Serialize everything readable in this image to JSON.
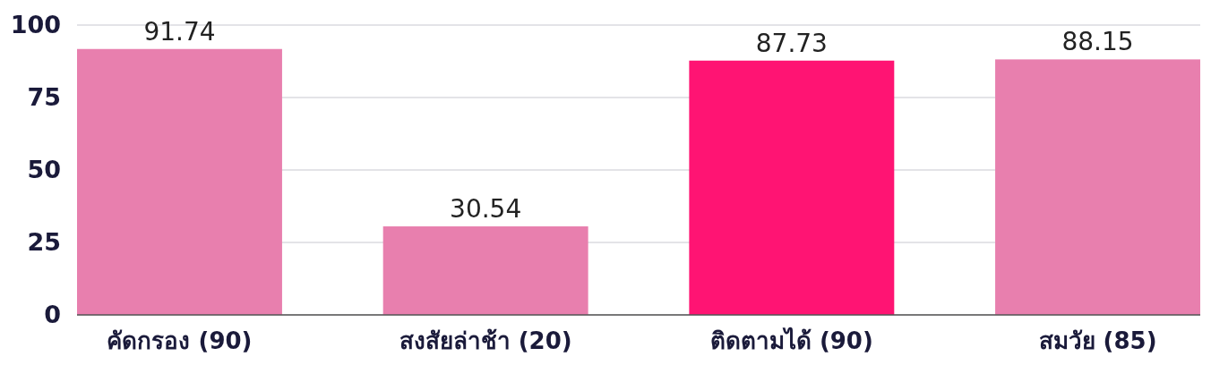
{
  "chart_data": {
    "type": "bar",
    "categories": [
      "คัดกรอง (90)",
      "สงสัยล่าช้า (20)",
      "ติดตามได้ (90)",
      "สมวัย (85)"
    ],
    "values": [
      91.74,
      30.54,
      87.73,
      88.15
    ],
    "colors": [
      "#e87fae",
      "#e87fae",
      "#ff1473",
      "#e87fae"
    ],
    "ylim": [
      0,
      100
    ],
    "yticks": [
      0,
      25,
      50,
      75,
      100
    ],
    "grid": "y",
    "data_labels": true
  }
}
